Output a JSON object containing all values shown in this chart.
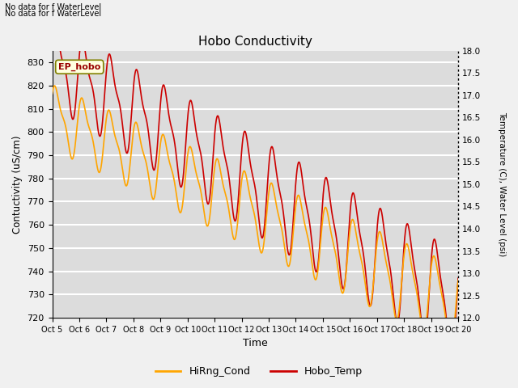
{
  "title": "Hobo Conductivity",
  "ylabel_left": "Contuctivity (uS/cm)",
  "ylabel_right": "Temperature (C), Water Level (psi)",
  "xlabel": "Time",
  "ylim_left": [
    720,
    835
  ],
  "ylim_right": [
    12.0,
    18.0
  ],
  "xtick_labels": [
    "Oct 5",
    "Oct 6",
    "Oct 7",
    "Oct 8",
    "Oct 9",
    "Oct 10",
    "Oct 11",
    "Oct 12",
    "Oct 13",
    "Oct 14",
    "Oct 15",
    "Oct 16",
    "Oct 17",
    "Oct 18",
    "Oct 19",
    "Oct 20"
  ],
  "legend_label_cond": "HiRng_Cond",
  "legend_label_temp": "Hobo_Temp",
  "color_cond": "#FFA500",
  "color_temp": "#CC0000",
  "ep_hobo_label": "EP_hobo",
  "plot_bg_color": "#DCDCDC",
  "fig_bg_color": "#F0F0F0",
  "grid_color": "#FFFFFF",
  "annotation_line1": "No data for f WaterLevel",
  "annotation_line2": "No data for f WaterLevel"
}
